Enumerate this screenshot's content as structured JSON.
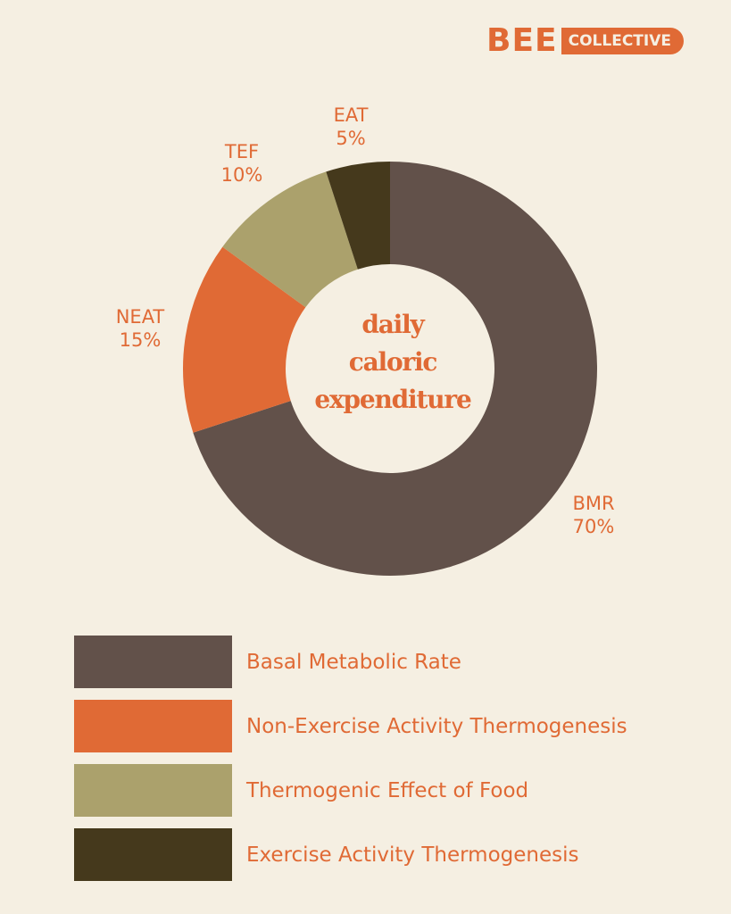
{
  "brand": {
    "bee": "BEE",
    "collective": "COLLECTIVE",
    "color": "#e06a35"
  },
  "center_text": {
    "line1": "daily",
    "line2": "caloric",
    "line3": "expenditure"
  },
  "chart_data": {
    "type": "pie",
    "donut": true,
    "title": "daily caloric expenditure",
    "slices": [
      {
        "label": "BMR",
        "percent": "70%",
        "value": 70,
        "color": "#62514a",
        "legend": "Basal Metabolic Rate"
      },
      {
        "label": "NEAT",
        "percent": "15%",
        "value": 15,
        "color": "#e06a35",
        "legend": "Non-Exercise Activity Thermogenesis"
      },
      {
        "label": "TEF",
        "percent": "10%",
        "value": 10,
        "color": "#aba16c",
        "legend": "Thermogenic Effect of Food"
      },
      {
        "label": "EAT",
        "percent": "5%",
        "value": 5,
        "color": "#45391c",
        "legend": "Exercise Activity Thermogenesis"
      }
    ],
    "start": "top",
    "direction": "clockwise",
    "legend_position": "bottom"
  }
}
